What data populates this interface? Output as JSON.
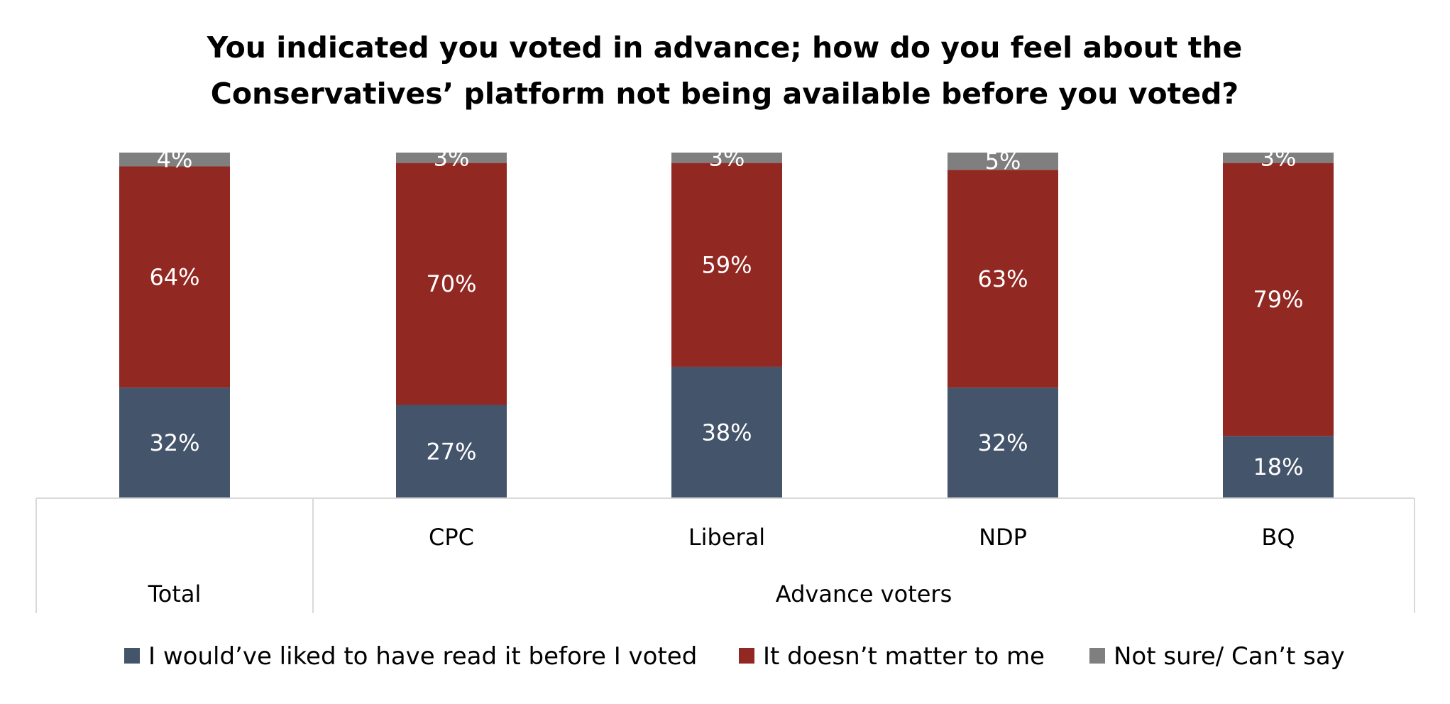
{
  "chart_data": {
    "type": "bar",
    "stacked": true,
    "title_lines": [
      "You indicated you voted in advance; how do you feel about the",
      "Conservatives’ platform not being available before you voted?"
    ],
    "categories": [
      "",
      "CPC",
      "Liberal",
      "NDP",
      "BQ"
    ],
    "groups": [
      {
        "label": "Total",
        "categories": [
          0
        ]
      },
      {
        "label": "Advance voters",
        "categories": [
          1,
          2,
          3,
          4
        ]
      }
    ],
    "series": [
      {
        "name": "I would’ve liked to have read it before I voted",
        "color": "#44546a",
        "values": [
          32,
          27,
          38,
          32,
          18
        ],
        "labels": [
          "32%",
          "27%",
          "38%",
          "32%",
          "18%"
        ]
      },
      {
        "name": "It doesn’t matter to me",
        "color": "#922822",
        "values": [
          64,
          70,
          59,
          63,
          79
        ],
        "labels": [
          "64%",
          "70%",
          "59%",
          "63%",
          "79%"
        ]
      },
      {
        "name": "Not sure/ Can’t say",
        "color": "#7f7f7f",
        "values": [
          4,
          3,
          3,
          5,
          3
        ],
        "labels": [
          "4%",
          "3%",
          "3%",
          "5%",
          "3%"
        ]
      }
    ],
    "ylim": [
      0,
      100
    ],
    "legend_position": "bottom",
    "grid": false
  }
}
